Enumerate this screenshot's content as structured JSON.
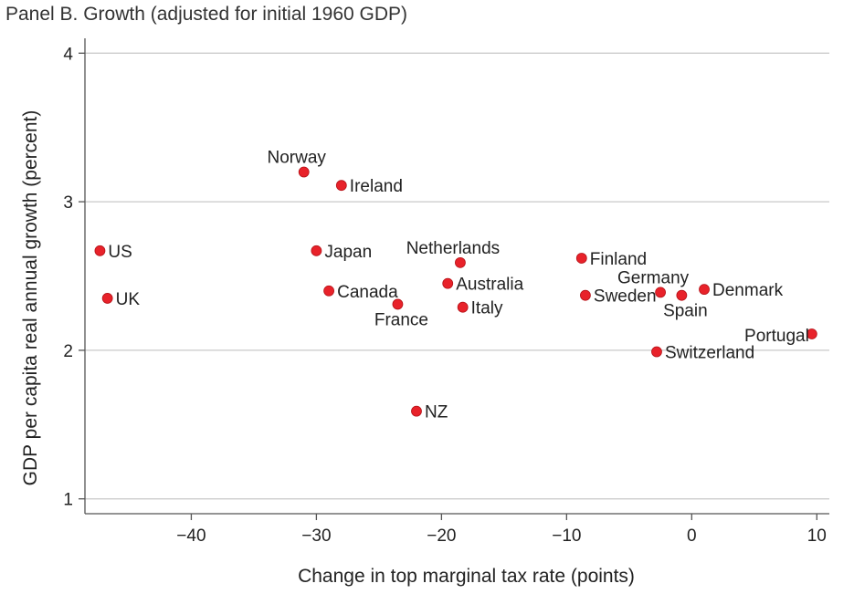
{
  "chart_data": {
    "type": "scatter",
    "title": "Panel B. Growth (adjusted for initial 1960 GDP)",
    "xlabel": "Change in top marginal tax rate (points)",
    "ylabel": "GDP per capita real annual growth (percent)",
    "xlim": [
      -48.5,
      11
    ],
    "ylim": [
      0.9,
      4.1
    ],
    "xticks": [
      -40,
      -30,
      -20,
      -10,
      0,
      10
    ],
    "yticks": [
      1,
      2,
      3,
      4
    ],
    "grid": "horizontal",
    "marker_color": "#e8222a",
    "points": [
      {
        "label": "US",
        "x": -47.3,
        "y": 2.67,
        "pos": "right"
      },
      {
        "label": "UK",
        "x": -46.7,
        "y": 2.35,
        "pos": "right"
      },
      {
        "label": "Norway",
        "x": -31.0,
        "y": 3.2,
        "pos": "top"
      },
      {
        "label": "Ireland",
        "x": -28.0,
        "y": 3.11,
        "pos": "right"
      },
      {
        "label": "Japan",
        "x": -30.0,
        "y": 2.67,
        "pos": "right"
      },
      {
        "label": "Canada",
        "x": -29.0,
        "y": 2.4,
        "pos": "right"
      },
      {
        "label": "France",
        "x": -23.5,
        "y": 2.31,
        "pos": "bottom"
      },
      {
        "label": "NZ",
        "x": -22.0,
        "y": 1.59,
        "pos": "right"
      },
      {
        "label": "Netherlands",
        "x": -18.5,
        "y": 2.59,
        "pos": "top"
      },
      {
        "label": "Australia",
        "x": -19.5,
        "y": 2.45,
        "pos": "right"
      },
      {
        "label": "Italy",
        "x": -18.3,
        "y": 2.29,
        "pos": "right"
      },
      {
        "label": "Finland",
        "x": -8.8,
        "y": 2.62,
        "pos": "right"
      },
      {
        "label": "Sweden",
        "x": -8.5,
        "y": 2.37,
        "pos": "right"
      },
      {
        "label": "Germany",
        "x": -2.5,
        "y": 2.39,
        "pos": "top"
      },
      {
        "label": "Spain",
        "x": -0.8,
        "y": 2.37,
        "pos": "bottom"
      },
      {
        "label": "Denmark",
        "x": 1.0,
        "y": 2.41,
        "pos": "right"
      },
      {
        "label": "Switzerland",
        "x": -2.8,
        "y": 1.99,
        "pos": "right"
      },
      {
        "label": "Portugal",
        "x": 9.6,
        "y": 2.11,
        "pos": "left"
      }
    ]
  }
}
